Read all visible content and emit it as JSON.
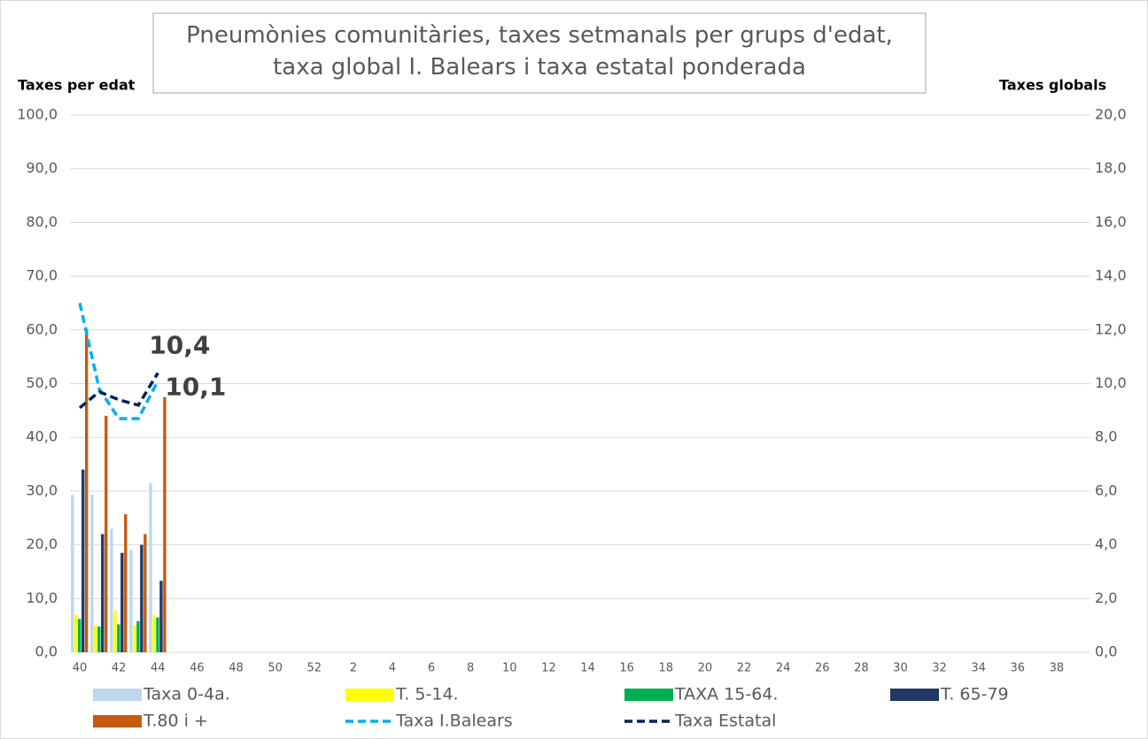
{
  "chart_data": {
    "type": "bar",
    "title": "Pneumònies comunitàries, taxes setmanals per grups d'edat, taxa global I. Balears i taxa estatal ponderada",
    "ylabel": "Taxes per edat",
    "y2label": "Taxes globals",
    "categories": [
      "40",
      null,
      "42",
      null,
      "44",
      null,
      "46",
      null,
      "48",
      null,
      "50",
      null,
      "52",
      null,
      "2",
      null,
      "4",
      null,
      "6",
      null,
      "8",
      null,
      "10",
      null,
      "12",
      null,
      "14",
      null,
      "16",
      null,
      "18",
      null,
      "20",
      null,
      "22",
      null,
      "24",
      null,
      "26",
      null,
      "28",
      null,
      "30",
      null,
      "32",
      null,
      "34",
      null,
      "36",
      null,
      "38",
      null
    ],
    "series": [
      {
        "name": "Taxa 0-4a.",
        "color": "#bdd7ee",
        "values": [
          29.3,
          29.3,
          23.0,
          19.0,
          31.5,
          null,
          null,
          null,
          null,
          null,
          null,
          null,
          null,
          null,
          null,
          null,
          null,
          null,
          null,
          null,
          null,
          null,
          null,
          null,
          null,
          null,
          null,
          null,
          null,
          null,
          null,
          null,
          null,
          null,
          null,
          null,
          null,
          null,
          null,
          null,
          null,
          null,
          null,
          null,
          null,
          null,
          null,
          null,
          null,
          null,
          null,
          null
        ]
      },
      {
        "name": "T. 5-14.",
        "color": "#ffff00",
        "values": [
          7.0,
          5.0,
          7.8,
          5.0,
          7.0,
          null,
          null,
          null,
          null,
          null,
          null,
          null,
          null,
          null,
          null,
          null,
          null,
          null,
          null,
          null,
          null,
          null,
          null,
          null,
          null,
          null,
          null,
          null,
          null,
          null,
          null,
          null,
          null,
          null,
          null,
          null,
          null,
          null,
          null,
          null,
          null,
          null,
          null,
          null,
          null,
          null,
          null,
          null,
          null,
          null,
          null,
          null
        ]
      },
      {
        "name": "TAXA 15-64.",
        "color": "#00b050",
        "values": [
          6.2,
          4.8,
          5.2,
          5.8,
          6.5,
          null,
          null,
          null,
          null,
          null,
          null,
          null,
          null,
          null,
          null,
          null,
          null,
          null,
          null,
          null,
          null,
          null,
          null,
          null,
          null,
          null,
          null,
          null,
          null,
          null,
          null,
          null,
          null,
          null,
          null,
          null,
          null,
          null,
          null,
          null,
          null,
          null,
          null,
          null,
          null,
          null,
          null,
          null,
          null,
          null,
          null,
          null
        ]
      },
      {
        "name": "T. 65-79",
        "color": "#203864",
        "values": [
          34.0,
          22.0,
          18.5,
          20.0,
          13.3,
          null,
          null,
          null,
          null,
          null,
          null,
          null,
          null,
          null,
          null,
          null,
          null,
          null,
          null,
          null,
          null,
          null,
          null,
          null,
          null,
          null,
          null,
          null,
          null,
          null,
          null,
          null,
          null,
          null,
          null,
          null,
          null,
          null,
          null,
          null,
          null,
          null,
          null,
          null,
          null,
          null,
          null,
          null,
          null,
          null,
          null,
          null
        ]
      },
      {
        "name": "T.80 i +",
        "color": "#c55a11",
        "values": [
          60.2,
          44.0,
          25.7,
          22.0,
          47.5,
          null,
          null,
          null,
          null,
          null,
          null,
          null,
          null,
          null,
          null,
          null,
          null,
          null,
          null,
          null,
          null,
          null,
          null,
          null,
          null,
          null,
          null,
          null,
          null,
          null,
          null,
          null,
          null,
          null,
          null,
          null,
          null,
          null,
          null,
          null,
          null,
          null,
          null,
          null,
          null,
          null,
          null,
          null,
          null,
          null,
          null,
          null
        ]
      },
      {
        "name": "Taxa I.Balears",
        "color": "#00b0f0",
        "type": "line",
        "axis": "y2",
        "values": [
          13.0,
          9.8,
          8.7,
          8.7,
          10.1,
          null,
          null,
          null,
          null,
          null,
          null,
          null,
          null,
          null,
          null,
          null,
          null,
          null,
          null,
          null,
          null,
          null,
          null,
          null,
          null,
          null,
          null,
          null,
          null,
          null,
          null,
          null,
          null,
          null,
          null,
          null,
          null,
          null,
          null,
          null,
          null,
          null,
          null,
          null,
          null,
          null,
          null,
          null,
          null,
          null,
          null,
          null
        ],
        "value_labels": [
          null,
          null,
          null,
          null,
          "10,1",
          null,
          null,
          null,
          null,
          null,
          null,
          null,
          null,
          null,
          null,
          null,
          null,
          null,
          null,
          null,
          null,
          null,
          null,
          null,
          null,
          null,
          null,
          null,
          null,
          null,
          null,
          null,
          null,
          null,
          null,
          null,
          null,
          null,
          null,
          null,
          null,
          null,
          null,
          null,
          null,
          null,
          null,
          null,
          null,
          null,
          null,
          null
        ]
      },
      {
        "name": "Taxa Estatal",
        "color": "#002060",
        "type": "line",
        "axis": "y2",
        "values": [
          9.1,
          9.7,
          9.4,
          9.2,
          10.4,
          null,
          null,
          null,
          null,
          null,
          null,
          null,
          null,
          null,
          null,
          null,
          null,
          null,
          null,
          null,
          null,
          null,
          null,
          null,
          null,
          null,
          null,
          null,
          null,
          null,
          null,
          null,
          null,
          null,
          null,
          null,
          null,
          null,
          null,
          null,
          null,
          null,
          null,
          null,
          null,
          null,
          null,
          null,
          null,
          null,
          null,
          null
        ],
        "value_labels": [
          null,
          null,
          null,
          null,
          "10,4",
          null,
          null,
          null,
          null,
          null,
          null,
          null,
          null,
          null,
          null,
          null,
          null,
          null,
          null,
          null,
          null,
          null,
          null,
          null,
          null,
          null,
          null,
          null,
          null,
          null,
          null,
          null,
          null,
          null,
          null,
          null,
          null,
          null,
          null,
          null,
          null,
          null,
          null,
          null,
          null,
          null,
          null,
          null,
          null,
          null,
          null,
          null
        ]
      }
    ],
    "ylim": [
      0,
      100
    ],
    "yticks": [
      {
        "value": 0,
        "label": "0,0"
      },
      {
        "value": 10,
        "label": "10,0"
      },
      {
        "value": 20,
        "label": "20,0"
      },
      {
        "value": 30,
        "label": "30,0"
      },
      {
        "value": 40,
        "label": "40,0"
      },
      {
        "value": 50,
        "label": "50,0"
      },
      {
        "value": 60,
        "label": "60,0"
      },
      {
        "value": 70,
        "label": "70,0"
      },
      {
        "value": 80,
        "label": "80,0"
      },
      {
        "value": 90,
        "label": "90,0"
      },
      {
        "value": 100,
        "label": "100,0"
      }
    ],
    "y2lim": [
      0,
      20
    ],
    "y2ticks": [
      {
        "value": 0,
        "label": "0,0"
      },
      {
        "value": 2,
        "label": "2,0"
      },
      {
        "value": 4,
        "label": "4,0"
      },
      {
        "value": 6,
        "label": "6,0"
      },
      {
        "value": 8,
        "label": "8,0"
      },
      {
        "value": 10,
        "label": "10,0"
      },
      {
        "value": 12,
        "label": "12,0"
      },
      {
        "value": 14,
        "label": "14,0"
      },
      {
        "value": 16,
        "label": "16,0"
      },
      {
        "value": 18,
        "label": "18,0"
      },
      {
        "value": 20,
        "label": "20,0"
      }
    ],
    "grid": true,
    "legend": "bottom"
  }
}
